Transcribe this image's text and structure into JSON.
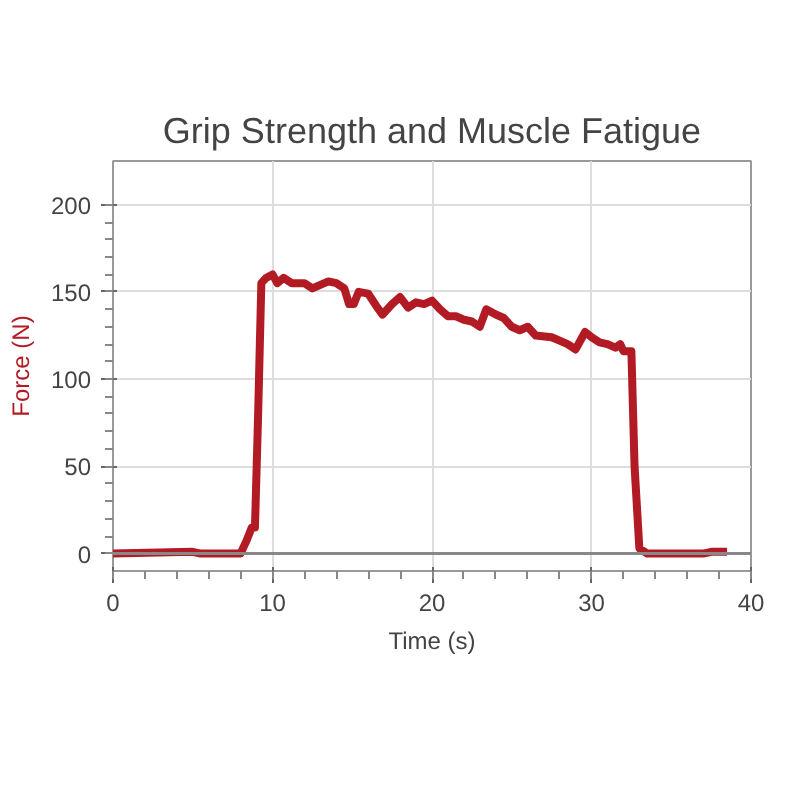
{
  "chart_data": {
    "type": "line",
    "title": "Grip Strength and Muscle Fatigue",
    "xlabel": "Time (s)",
    "ylabel": "Force (N)",
    "x": [
      0,
      5,
      5.5,
      8,
      8.4,
      8.7,
      8.9,
      9.1,
      9.3,
      9.6,
      10,
      10.3,
      10.7,
      11.2,
      12,
      12.5,
      13,
      13.5,
      14,
      14.5,
      14.8,
      15.1,
      15.4,
      16,
      16.5,
      16.9,
      17.5,
      18,
      18.5,
      19,
      19.5,
      20,
      20.5,
      21,
      21.5,
      22,
      22.5,
      23,
      23.4,
      24,
      24.5,
      25,
      25.5,
      26,
      26.5,
      27.5,
      28,
      28.5,
      29,
      29.6,
      30,
      30.5,
      31,
      31.5,
      31.8,
      32,
      32.5,
      32.7,
      33,
      33.5,
      37,
      37.5,
      38.5
    ],
    "series": [
      {
        "color": "#b31b24",
        "values": [
          0,
          1,
          0,
          0,
          8,
          15,
          15,
          80,
          155,
          158,
          160,
          155,
          158,
          155,
          155,
          152,
          154,
          156,
          155,
          152,
          143,
          143,
          150,
          149,
          142,
          137,
          143,
          147,
          141,
          144,
          143,
          145,
          140,
          136,
          136,
          134,
          133,
          130,
          140,
          137,
          135,
          130,
          128,
          130,
          125,
          124,
          122,
          120,
          117,
          127,
          124,
          121,
          120,
          118,
          120,
          116,
          116,
          50,
          3,
          0,
          0,
          1,
          1
        ]
      }
    ],
    "xlim": [
      0,
      40
    ],
    "ylim": [
      -10,
      225
    ],
    "xticks": [
      0,
      10,
      20,
      30,
      40
    ],
    "yticks": [
      0,
      50,
      100,
      150,
      200
    ],
    "grid": true,
    "marker": "none",
    "line_style": "solid"
  }
}
